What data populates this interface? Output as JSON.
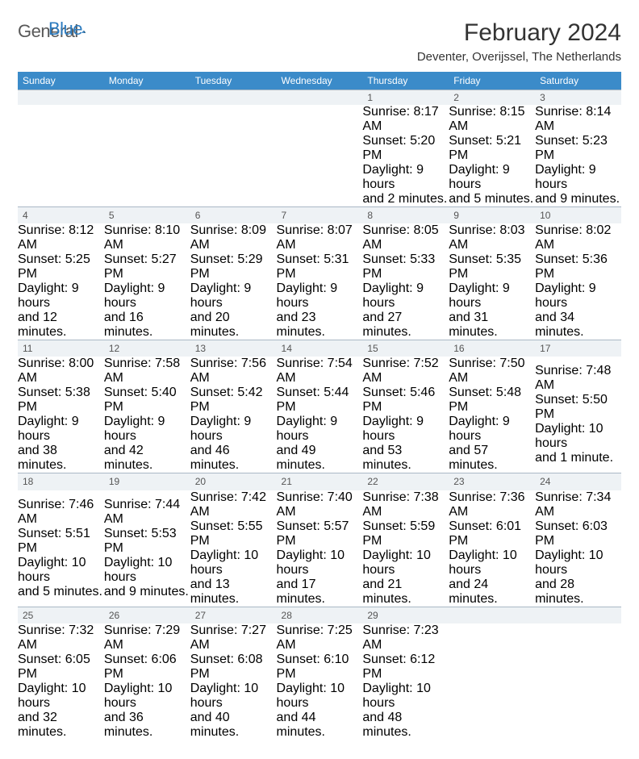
{
  "logo": {
    "text1": "General",
    "text2": "Blue"
  },
  "title": "February 2024",
  "location": "Deventer, Overijssel, The Netherlands",
  "day_headers": [
    "Sunday",
    "Monday",
    "Tuesday",
    "Wednesday",
    "Thursday",
    "Friday",
    "Saturday"
  ],
  "colors": {
    "header_bg": "#3b8bc9",
    "daynum_bg": "#eef2f5",
    "row_border": "#2c5a7a"
  },
  "weeks": [
    {
      "nums": [
        "",
        "",
        "",
        "",
        "1",
        "2",
        "3"
      ],
      "cells": [
        {},
        {},
        {},
        {},
        {
          "l1": "Sunrise: 8:17 AM",
          "l2": "Sunset: 5:20 PM",
          "l3": "Daylight: 9 hours",
          "l4": "and 2 minutes."
        },
        {
          "l1": "Sunrise: 8:15 AM",
          "l2": "Sunset: 5:21 PM",
          "l3": "Daylight: 9 hours",
          "l4": "and 5 minutes."
        },
        {
          "l1": "Sunrise: 8:14 AM",
          "l2": "Sunset: 5:23 PM",
          "l3": "Daylight: 9 hours",
          "l4": "and 9 minutes."
        }
      ]
    },
    {
      "nums": [
        "4",
        "5",
        "6",
        "7",
        "8",
        "9",
        "10"
      ],
      "cells": [
        {
          "l1": "Sunrise: 8:12 AM",
          "l2": "Sunset: 5:25 PM",
          "l3": "Daylight: 9 hours",
          "l4": "and 12 minutes."
        },
        {
          "l1": "Sunrise: 8:10 AM",
          "l2": "Sunset: 5:27 PM",
          "l3": "Daylight: 9 hours",
          "l4": "and 16 minutes."
        },
        {
          "l1": "Sunrise: 8:09 AM",
          "l2": "Sunset: 5:29 PM",
          "l3": "Daylight: 9 hours",
          "l4": "and 20 minutes."
        },
        {
          "l1": "Sunrise: 8:07 AM",
          "l2": "Sunset: 5:31 PM",
          "l3": "Daylight: 9 hours",
          "l4": "and 23 minutes."
        },
        {
          "l1": "Sunrise: 8:05 AM",
          "l2": "Sunset: 5:33 PM",
          "l3": "Daylight: 9 hours",
          "l4": "and 27 minutes."
        },
        {
          "l1": "Sunrise: 8:03 AM",
          "l2": "Sunset: 5:35 PM",
          "l3": "Daylight: 9 hours",
          "l4": "and 31 minutes."
        },
        {
          "l1": "Sunrise: 8:02 AM",
          "l2": "Sunset: 5:36 PM",
          "l3": "Daylight: 9 hours",
          "l4": "and 34 minutes."
        }
      ]
    },
    {
      "nums": [
        "11",
        "12",
        "13",
        "14",
        "15",
        "16",
        "17"
      ],
      "cells": [
        {
          "l1": "Sunrise: 8:00 AM",
          "l2": "Sunset: 5:38 PM",
          "l3": "Daylight: 9 hours",
          "l4": "and 38 minutes."
        },
        {
          "l1": "Sunrise: 7:58 AM",
          "l2": "Sunset: 5:40 PM",
          "l3": "Daylight: 9 hours",
          "l4": "and 42 minutes."
        },
        {
          "l1": "Sunrise: 7:56 AM",
          "l2": "Sunset: 5:42 PM",
          "l3": "Daylight: 9 hours",
          "l4": "and 46 minutes."
        },
        {
          "l1": "Sunrise: 7:54 AM",
          "l2": "Sunset: 5:44 PM",
          "l3": "Daylight: 9 hours",
          "l4": "and 49 minutes."
        },
        {
          "l1": "Sunrise: 7:52 AM",
          "l2": "Sunset: 5:46 PM",
          "l3": "Daylight: 9 hours",
          "l4": "and 53 minutes."
        },
        {
          "l1": "Sunrise: 7:50 AM",
          "l2": "Sunset: 5:48 PM",
          "l3": "Daylight: 9 hours",
          "l4": "and 57 minutes."
        },
        {
          "l1": "Sunrise: 7:48 AM",
          "l2": "Sunset: 5:50 PM",
          "l3": "Daylight: 10 hours",
          "l4": "and 1 minute."
        }
      ]
    },
    {
      "nums": [
        "18",
        "19",
        "20",
        "21",
        "22",
        "23",
        "24"
      ],
      "cells": [
        {
          "l1": "Sunrise: 7:46 AM",
          "l2": "Sunset: 5:51 PM",
          "l3": "Daylight: 10 hours",
          "l4": "and 5 minutes."
        },
        {
          "l1": "Sunrise: 7:44 AM",
          "l2": "Sunset: 5:53 PM",
          "l3": "Daylight: 10 hours",
          "l4": "and 9 minutes."
        },
        {
          "l1": "Sunrise: 7:42 AM",
          "l2": "Sunset: 5:55 PM",
          "l3": "Daylight: 10 hours",
          "l4": "and 13 minutes."
        },
        {
          "l1": "Sunrise: 7:40 AM",
          "l2": "Sunset: 5:57 PM",
          "l3": "Daylight: 10 hours",
          "l4": "and 17 minutes."
        },
        {
          "l1": "Sunrise: 7:38 AM",
          "l2": "Sunset: 5:59 PM",
          "l3": "Daylight: 10 hours",
          "l4": "and 21 minutes."
        },
        {
          "l1": "Sunrise: 7:36 AM",
          "l2": "Sunset: 6:01 PM",
          "l3": "Daylight: 10 hours",
          "l4": "and 24 minutes."
        },
        {
          "l1": "Sunrise: 7:34 AM",
          "l2": "Sunset: 6:03 PM",
          "l3": "Daylight: 10 hours",
          "l4": "and 28 minutes."
        }
      ]
    },
    {
      "nums": [
        "25",
        "26",
        "27",
        "28",
        "29",
        "",
        ""
      ],
      "cells": [
        {
          "l1": "Sunrise: 7:32 AM",
          "l2": "Sunset: 6:05 PM",
          "l3": "Daylight: 10 hours",
          "l4": "and 32 minutes."
        },
        {
          "l1": "Sunrise: 7:29 AM",
          "l2": "Sunset: 6:06 PM",
          "l3": "Daylight: 10 hours",
          "l4": "and 36 minutes."
        },
        {
          "l1": "Sunrise: 7:27 AM",
          "l2": "Sunset: 6:08 PM",
          "l3": "Daylight: 10 hours",
          "l4": "and 40 minutes."
        },
        {
          "l1": "Sunrise: 7:25 AM",
          "l2": "Sunset: 6:10 PM",
          "l3": "Daylight: 10 hours",
          "l4": "and 44 minutes."
        },
        {
          "l1": "Sunrise: 7:23 AM",
          "l2": "Sunset: 6:12 PM",
          "l3": "Daylight: 10 hours",
          "l4": "and 48 minutes."
        },
        {},
        {}
      ]
    }
  ]
}
